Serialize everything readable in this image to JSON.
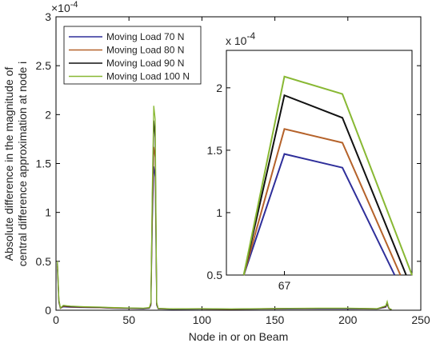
{
  "chart_data": {
    "type": "line",
    "xlabel": "Node in or on Beam",
    "ylabel_line1": "Absolute difference in the magnitude of",
    "ylabel_line2": "central difference approximation at node i",
    "y_exponent": "×10",
    "y_exponent_power": "-4",
    "xlim": [
      0,
      250
    ],
    "ylim": [
      0,
      3
    ],
    "x_ticks": [
      "0",
      "50",
      "100",
      "150",
      "200",
      "250"
    ],
    "y_ticks": [
      "0",
      "0.5",
      "1",
      "1.5",
      "2",
      "2.5",
      "3"
    ],
    "legend_position": "top-left",
    "series": [
      {
        "name": "Moving Load 70 N",
        "color": "#2e2e9a",
        "x": [
          1,
          2,
          3,
          5,
          10,
          20,
          30,
          40,
          50,
          60,
          64,
          65,
          66,
          67,
          68,
          69,
          70,
          80,
          100,
          120,
          140,
          160,
          180,
          200,
          220,
          226,
          227,
          228,
          229,
          230
        ],
        "y": [
          0.42,
          0.08,
          0.02,
          0.035,
          0.03,
          0.028,
          0.025,
          0.02,
          0.018,
          0.015,
          0.02,
          0.05,
          0.9,
          1.47,
          1.36,
          0.05,
          0.015,
          0.01,
          0.012,
          0.01,
          0.012,
          0.014,
          0.015,
          0.015,
          0.012,
          0.03,
          0.06,
          0.02,
          0.01,
          0.01
        ]
      },
      {
        "name": "Moving Load 80 N",
        "color": "#b5622a",
        "x": [
          1,
          2,
          3,
          5,
          10,
          20,
          30,
          40,
          50,
          60,
          64,
          65,
          66,
          67,
          68,
          69,
          70,
          80,
          100,
          120,
          140,
          160,
          180,
          200,
          220,
          226,
          227,
          228,
          229,
          230
        ],
        "y": [
          0.45,
          0.09,
          0.02,
          0.04,
          0.034,
          0.03,
          0.027,
          0.022,
          0.02,
          0.017,
          0.022,
          0.06,
          1.0,
          1.67,
          1.56,
          0.06,
          0.016,
          0.012,
          0.013,
          0.011,
          0.013,
          0.016,
          0.017,
          0.017,
          0.013,
          0.035,
          0.07,
          0.022,
          0.011,
          0.01
        ]
      },
      {
        "name": "Moving Load 90 N",
        "color": "#111111",
        "x": [
          1,
          2,
          3,
          5,
          10,
          20,
          30,
          40,
          50,
          60,
          64,
          65,
          66,
          67,
          68,
          69,
          70,
          80,
          100,
          120,
          140,
          160,
          180,
          200,
          220,
          226,
          227,
          228,
          229,
          230
        ],
        "y": [
          0.48,
          0.1,
          0.022,
          0.045,
          0.038,
          0.033,
          0.03,
          0.025,
          0.022,
          0.019,
          0.025,
          0.07,
          1.15,
          1.94,
          1.76,
          0.07,
          0.018,
          0.013,
          0.015,
          0.012,
          0.015,
          0.018,
          0.019,
          0.019,
          0.015,
          0.04,
          0.08,
          0.025,
          0.012,
          0.01
        ]
      },
      {
        "name": "Moving Load 100 N",
        "color": "#88b833",
        "x": [
          1,
          2,
          3,
          5,
          10,
          20,
          30,
          40,
          50,
          60,
          64,
          65,
          66,
          67,
          68,
          69,
          70,
          80,
          100,
          120,
          140,
          160,
          180,
          200,
          220,
          226,
          227,
          228,
          229,
          230
        ],
        "y": [
          0.5,
          0.11,
          0.024,
          0.05,
          0.042,
          0.036,
          0.033,
          0.027,
          0.024,
          0.021,
          0.028,
          0.08,
          1.25,
          2.09,
          1.95,
          0.08,
          0.02,
          0.014,
          0.016,
          0.013,
          0.016,
          0.02,
          0.021,
          0.021,
          0.016,
          0.045,
          0.09,
          0.028,
          0.013,
          0.01
        ]
      }
    ],
    "inset": {
      "x_ticks": [
        "67"
      ],
      "y_ticks": [
        "0.5",
        "1",
        "1.5",
        "2"
      ],
      "y_exponent": "x 10",
      "y_exponent_power": "-4",
      "xlim": [
        66,
        69.2
      ],
      "ylim": [
        0.5,
        2.3
      ],
      "series": [
        {
          "color": "#2e2e9a",
          "x": [
            66.3,
            67,
            68,
            68.9
          ],
          "y": [
            0.5,
            1.47,
            1.36,
            0.5
          ]
        },
        {
          "color": "#b5622a",
          "x": [
            66.3,
            67,
            68,
            69.0
          ],
          "y": [
            0.5,
            1.67,
            1.56,
            0.5
          ]
        },
        {
          "color": "#111111",
          "x": [
            66.3,
            67,
            68,
            69.1
          ],
          "y": [
            0.5,
            1.94,
            1.76,
            0.5
          ]
        },
        {
          "color": "#88b833",
          "x": [
            66.3,
            67,
            68,
            69.2
          ],
          "y": [
            0.5,
            2.09,
            1.95,
            0.5
          ]
        }
      ]
    }
  }
}
